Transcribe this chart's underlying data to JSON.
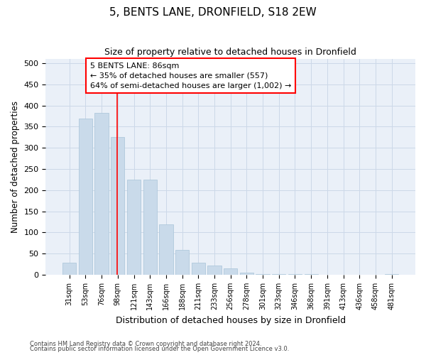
{
  "title": "5, BENTS LANE, DRONFIELD, S18 2EW",
  "subtitle": "Size of property relative to detached houses in Dronfield",
  "xlabel": "Distribution of detached houses by size in Dronfield",
  "ylabel": "Number of detached properties",
  "bar_color": "#c9daea",
  "bar_edge_color": "#a8c4d8",
  "grid_color": "#ccd8e8",
  "background_color": "#eaf0f8",
  "categories": [
    "31sqm",
    "53sqm",
    "76sqm",
    "98sqm",
    "121sqm",
    "143sqm",
    "166sqm",
    "188sqm",
    "211sqm",
    "233sqm",
    "256sqm",
    "278sqm",
    "301sqm",
    "323sqm",
    "346sqm",
    "368sqm",
    "391sqm",
    "413sqm",
    "436sqm",
    "458sqm",
    "481sqm"
  ],
  "values": [
    28,
    370,
    383,
    325,
    225,
    225,
    120,
    58,
    28,
    22,
    15,
    5,
    2,
    1,
    1,
    1,
    0,
    0,
    0,
    0,
    2
  ],
  "property_label": "5 BENTS LANE: 86sqm",
  "annotation_line1": "← 35% of detached houses are smaller (557)",
  "annotation_line2": "64% of semi-detached houses are larger (1,002) →",
  "red_line_x": 2.95,
  "ylim": [
    0,
    510
  ],
  "yticks": [
    0,
    50,
    100,
    150,
    200,
    250,
    300,
    350,
    400,
    450,
    500
  ],
  "footer1": "Contains HM Land Registry data © Crown copyright and database right 2024.",
  "footer2": "Contains public sector information licensed under the Open Government Licence v3.0."
}
